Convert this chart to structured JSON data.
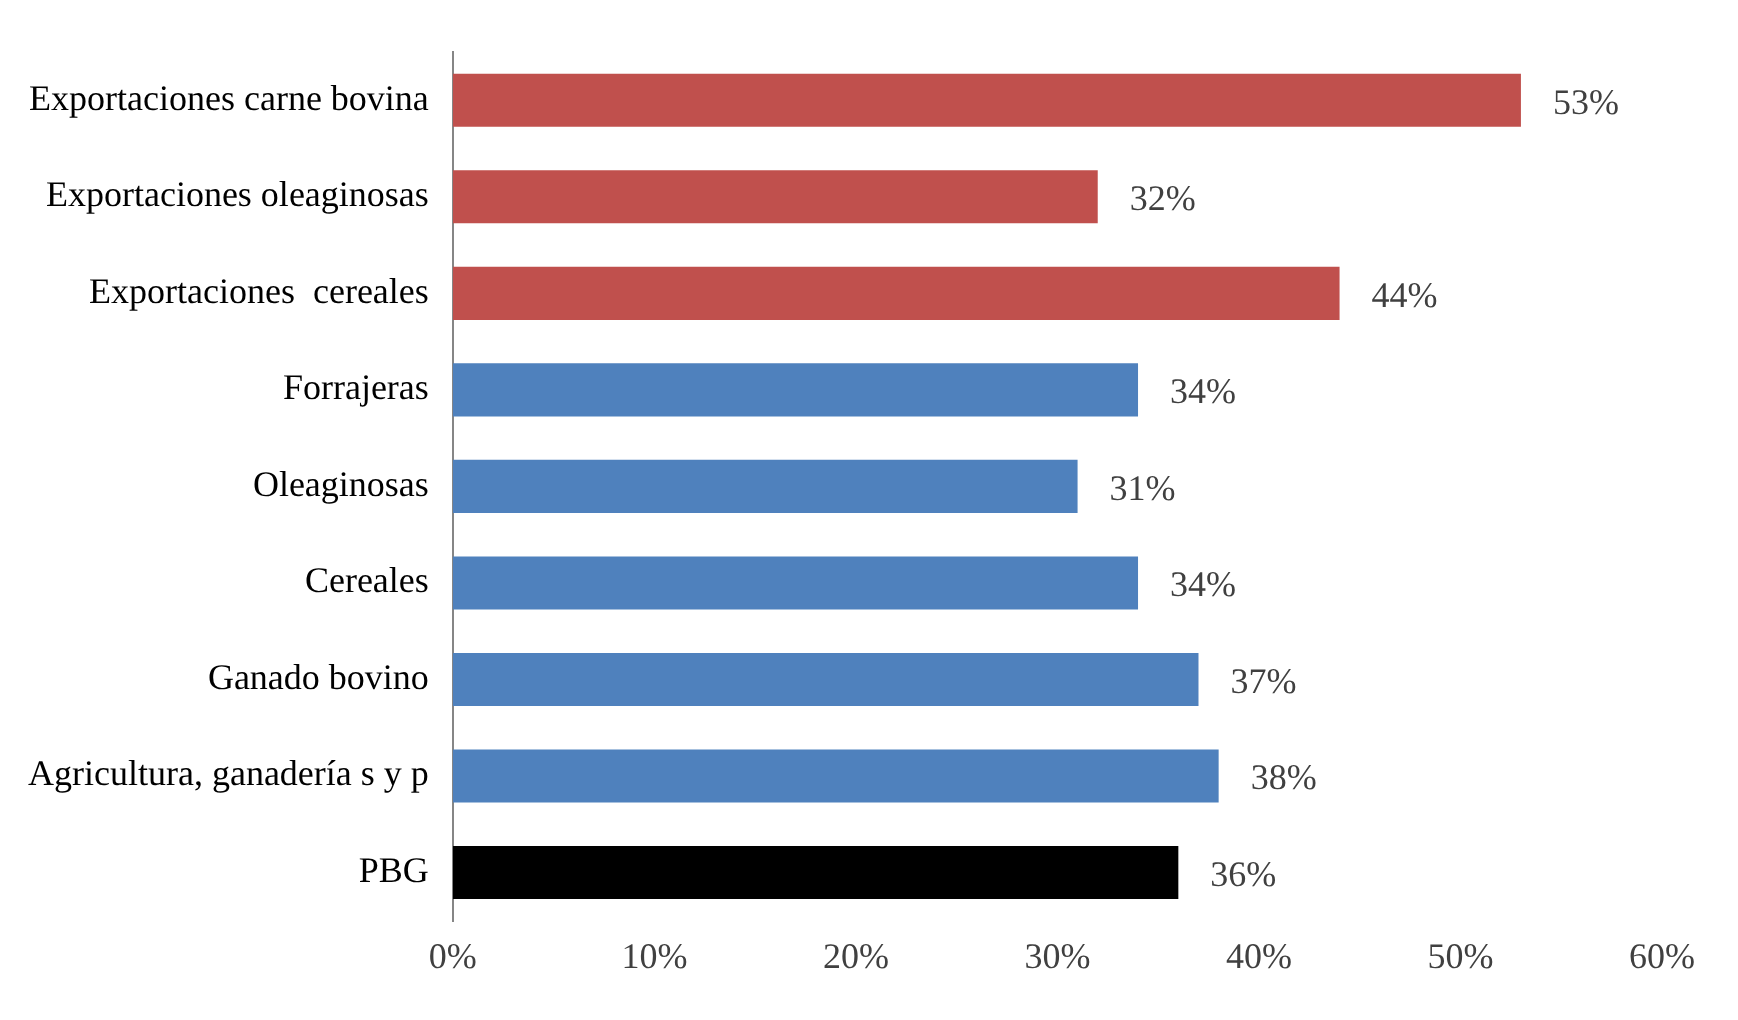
{
  "chart_data": {
    "type": "bar",
    "orientation": "horizontal",
    "categories": [
      "Exportaciones carne bovina",
      "Exportaciones oleaginosas",
      "Exportaciones  cereales",
      "Forrajeras",
      "Oleaginosas",
      "Cereales",
      "Ganado bovino",
      "Agricultura, ganadería s y p",
      "PBG"
    ],
    "values": [
      53,
      32,
      44,
      34,
      31,
      34,
      37,
      38,
      36
    ],
    "colors": [
      "#c0504d",
      "#c0504d",
      "#c0504d",
      "#4f81bd",
      "#4f81bd",
      "#4f81bd",
      "#4f81bd",
      "#4f81bd",
      "#000000"
    ],
    "value_labels": [
      "53%",
      "32%",
      "44%",
      "34%",
      "31%",
      "34%",
      "37%",
      "38%",
      "36%"
    ],
    "xlim": [
      0,
      60
    ],
    "xticks": [
      {
        "value": 0,
        "label": "0%"
      },
      {
        "value": 10,
        "label": "10%"
      },
      {
        "value": 20,
        "label": "20%"
      },
      {
        "value": 30,
        "label": "30%"
      },
      {
        "value": 40,
        "label": "40%"
      },
      {
        "value": 50,
        "label": "50%"
      },
      {
        "value": 60,
        "label": "60%"
      }
    ],
    "grid": false,
    "legend": false
  }
}
